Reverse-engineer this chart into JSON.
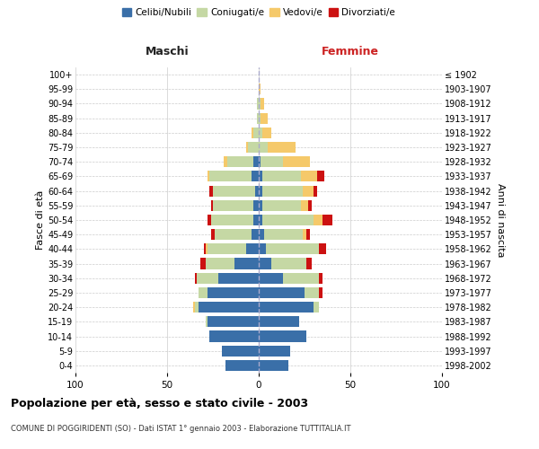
{
  "age_groups": [
    "0-4",
    "5-9",
    "10-14",
    "15-19",
    "20-24",
    "25-29",
    "30-34",
    "35-39",
    "40-44",
    "45-49",
    "50-54",
    "55-59",
    "60-64",
    "65-69",
    "70-74",
    "75-79",
    "80-84",
    "85-89",
    "90-94",
    "95-99",
    "100+"
  ],
  "birth_years": [
    "1998-2002",
    "1993-1997",
    "1988-1992",
    "1983-1987",
    "1978-1982",
    "1973-1977",
    "1968-1972",
    "1963-1967",
    "1958-1962",
    "1953-1957",
    "1948-1952",
    "1943-1947",
    "1938-1942",
    "1933-1937",
    "1928-1932",
    "1923-1927",
    "1918-1922",
    "1913-1917",
    "1908-1912",
    "1903-1907",
    "≤ 1902"
  ],
  "males": {
    "celibi": [
      18,
      20,
      27,
      28,
      33,
      28,
      22,
      13,
      7,
      4,
      3,
      3,
      2,
      4,
      3,
      0,
      0,
      0,
      0,
      0,
      0
    ],
    "coniugati": [
      0,
      0,
      0,
      1,
      2,
      5,
      12,
      16,
      21,
      20,
      23,
      22,
      23,
      23,
      14,
      6,
      3,
      1,
      1,
      0,
      0
    ],
    "vedovi": [
      0,
      0,
      0,
      0,
      1,
      0,
      0,
      0,
      1,
      0,
      0,
      0,
      0,
      1,
      2,
      1,
      1,
      0,
      0,
      0,
      0
    ],
    "divorziati": [
      0,
      0,
      0,
      0,
      0,
      0,
      1,
      3,
      1,
      2,
      2,
      1,
      2,
      0,
      0,
      0,
      0,
      0,
      0,
      0,
      0
    ]
  },
  "females": {
    "nubili": [
      16,
      17,
      26,
      22,
      30,
      25,
      13,
      7,
      4,
      3,
      2,
      2,
      2,
      2,
      1,
      0,
      0,
      0,
      0,
      0,
      0
    ],
    "coniugate": [
      0,
      0,
      0,
      0,
      3,
      8,
      20,
      19,
      29,
      21,
      28,
      21,
      22,
      21,
      12,
      5,
      2,
      1,
      1,
      0,
      0
    ],
    "vedove": [
      0,
      0,
      0,
      0,
      0,
      0,
      0,
      0,
      0,
      2,
      5,
      4,
      6,
      9,
      15,
      15,
      5,
      4,
      2,
      1,
      0
    ],
    "divorziate": [
      0,
      0,
      0,
      0,
      0,
      2,
      2,
      3,
      4,
      2,
      5,
      2,
      2,
      4,
      0,
      0,
      0,
      0,
      0,
      0,
      0
    ]
  },
  "color_celibi": "#3a6fa8",
  "color_coniugati": "#c5d8a4",
  "color_vedovi": "#f5c96a",
  "color_divorziati": "#cc1111",
  "title": "Popolazione per età, sesso e stato civile - 2003",
  "subtitle": "COMUNE DI POGGIRIDENTI (SO) - Dati ISTAT 1° gennaio 2003 - Elaborazione TUTTITALIA.IT",
  "xlabel_left": "Maschi",
  "xlabel_right": "Femmine",
  "ylabel_left": "Fasce di età",
  "ylabel_right": "Anni di nascita",
  "xlim": 100,
  "bg_color": "#ffffff",
  "grid_color": "#cccccc"
}
